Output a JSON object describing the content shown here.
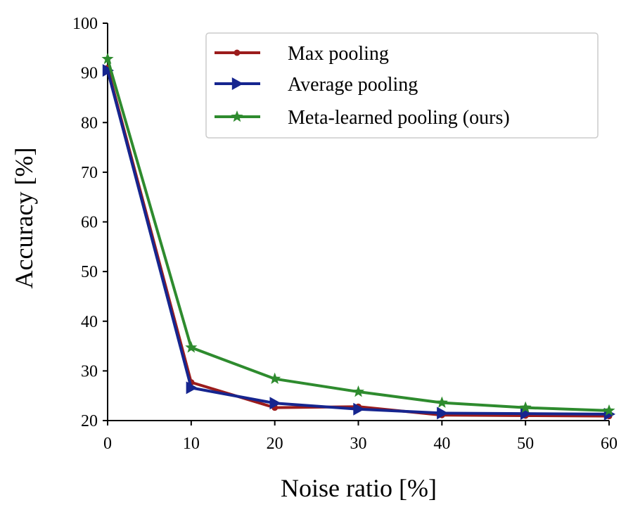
{
  "chart_data": {
    "type": "line",
    "title": "",
    "xlabel": "Noise ratio [%]",
    "ylabel": "Accuracy [%]",
    "x": [
      0,
      10,
      20,
      30,
      40,
      50,
      60
    ],
    "xlim": [
      0,
      60
    ],
    "ylim": [
      20,
      100
    ],
    "xticks": [
      "0",
      "10",
      "20",
      "30",
      "40",
      "50",
      "60"
    ],
    "yticks": [
      "20",
      "30",
      "40",
      "50",
      "60",
      "70",
      "80",
      "90",
      "100"
    ],
    "grid": false,
    "legend_position": "top-right",
    "series": [
      {
        "name": "Max pooling",
        "color": "#9b1c1c",
        "marker": "circle",
        "values": [
          91.0,
          27.7,
          22.6,
          22.8,
          21.1,
          21.0,
          20.9
        ]
      },
      {
        "name": "Average pooling",
        "color": "#16258f",
        "marker": "triangle-right",
        "values": [
          90.5,
          26.6,
          23.5,
          22.3,
          21.5,
          21.4,
          21.3
        ]
      },
      {
        "name": "Meta-learned pooling (ours)",
        "color": "#2e8b2e",
        "marker": "star",
        "values": [
          92.8,
          34.7,
          28.4,
          25.8,
          23.6,
          22.6,
          22.0
        ]
      }
    ]
  }
}
